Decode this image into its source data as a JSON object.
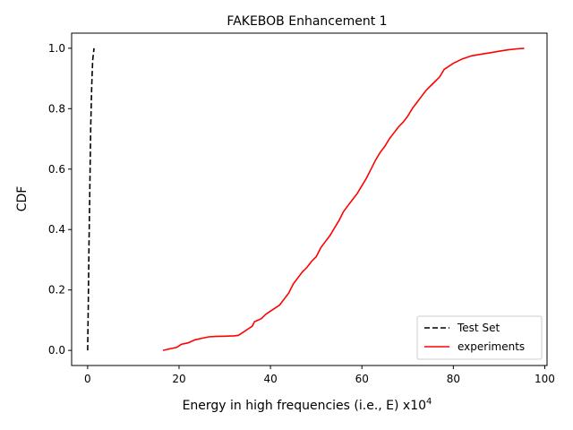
{
  "chart_data": {
    "type": "line",
    "title": "FAKEBOB Enhancement 1",
    "xlabel": "Energy in high frequencies (i.e., E) x10",
    "xlabel_exponent": "4",
    "ylabel": "CDF",
    "xlim": [
      -3.5,
      100.5
    ],
    "ylim": [
      -0.05,
      1.05
    ],
    "xticks": [
      0,
      20,
      40,
      60,
      80,
      100
    ],
    "yticks": [
      0.0,
      0.2,
      0.4,
      0.6,
      0.8,
      1.0
    ],
    "xtick_labels": [
      "0",
      "20",
      "40",
      "60",
      "80",
      "100"
    ],
    "ytick_labels": [
      "0.0",
      "0.2",
      "0.4",
      "0.6",
      "0.8",
      "1.0"
    ],
    "grid": false,
    "legend_position": "bottom-right",
    "series": [
      {
        "name": "Test Set",
        "color": "#000000",
        "style": "dashed",
        "x": [
          0.0,
          0.15,
          0.3,
          0.5,
          0.7,
          0.9,
          1.1,
          1.4
        ],
        "y": [
          0.0,
          0.15,
          0.35,
          0.55,
          0.75,
          0.88,
          0.96,
          1.0
        ]
      },
      {
        "name": "experiments",
        "color": "#ff0000",
        "style": "solid",
        "x": [
          16.5,
          18,
          19.5,
          20.5,
          22,
          23.5,
          25,
          26.5,
          28,
          30,
          32,
          33,
          34,
          35,
          36,
          36.5,
          38,
          39,
          40,
          41,
          42,
          43,
          44,
          45,
          46,
          47,
          48,
          49,
          50,
          51,
          52,
          53,
          54,
          55,
          56,
          57,
          58,
          59,
          60,
          61,
          62,
          63,
          64,
          65,
          66,
          67,
          68,
          69,
          70,
          71,
          72,
          73,
          74,
          75,
          76,
          77,
          78,
          80,
          82,
          84,
          86,
          88,
          90,
          92,
          94,
          95.5
        ],
        "y": [
          0.0,
          0.005,
          0.01,
          0.02,
          0.025,
          0.035,
          0.04,
          0.045,
          0.046,
          0.047,
          0.048,
          0.05,
          0.06,
          0.07,
          0.08,
          0.095,
          0.105,
          0.12,
          0.13,
          0.14,
          0.15,
          0.17,
          0.19,
          0.22,
          0.24,
          0.26,
          0.275,
          0.295,
          0.31,
          0.34,
          0.36,
          0.38,
          0.405,
          0.43,
          0.46,
          0.48,
          0.5,
          0.52,
          0.545,
          0.57,
          0.6,
          0.63,
          0.655,
          0.675,
          0.7,
          0.72,
          0.74,
          0.755,
          0.775,
          0.8,
          0.82,
          0.84,
          0.86,
          0.875,
          0.89,
          0.905,
          0.93,
          0.95,
          0.965,
          0.975,
          0.98,
          0.985,
          0.99,
          0.995,
          0.998,
          1.0
        ]
      }
    ]
  }
}
